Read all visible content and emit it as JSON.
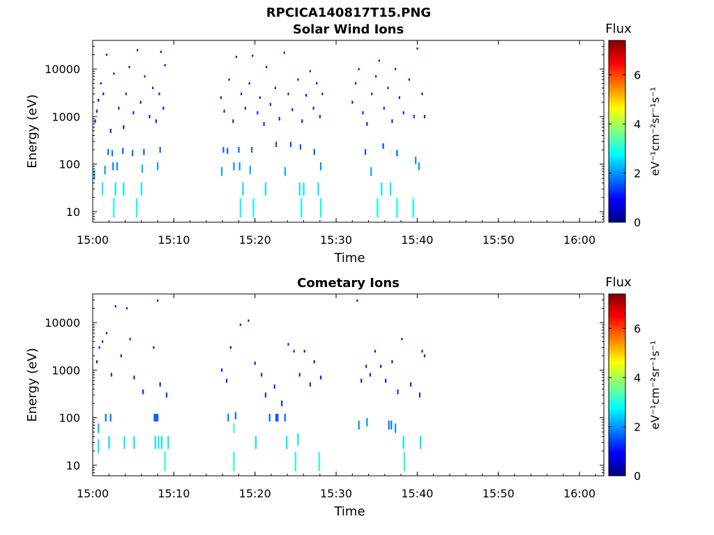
{
  "figure_title": "RPCICA140817T15.PNG",
  "colors": {
    "colormap": [
      "#00007f",
      "#0000ff",
      "#007fff",
      "#00ffff",
      "#7fff7f",
      "#ffff00",
      "#ff7f00",
      "#ff0000",
      "#7f0000"
    ]
  },
  "chart_data": [
    {
      "type": "heatmap",
      "title": "Solar Wind Ions",
      "xlabel": "Time",
      "ylabel": "Energy (eV)",
      "x_scale": "time",
      "y_scale": "log",
      "xlim": [
        "15:00",
        "16:03"
      ],
      "ylim": [
        6,
        40000
      ],
      "x_ticks": [
        "15:00",
        "15:10",
        "15:20",
        "15:30",
        "15:40",
        "15:50",
        "16:00"
      ],
      "y_ticks": [
        "10",
        "100",
        "1000",
        "10000"
      ],
      "colorbar": {
        "label": "Flux",
        "units": "eV⁻¹cm⁻²sr⁻¹s⁻¹",
        "range": [
          0,
          7.4
        ],
        "ticks": [
          "0",
          "2",
          "4",
          "6"
        ]
      },
      "active_intervals": [
        [
          "15:00",
          "15:09"
        ],
        [
          "15:16",
          "15:29"
        ],
        [
          "15:32",
          "15:41"
        ]
      ],
      "points": [
        [
          2.6,
          12,
          2.8
        ],
        [
          5.4,
          12,
          2.8
        ],
        [
          18.2,
          12,
          2.8
        ],
        [
          19.8,
          12,
          2.8
        ],
        [
          25.7,
          12,
          2.8
        ],
        [
          28.1,
          12,
          2.8
        ],
        [
          35.1,
          12,
          2.8
        ],
        [
          37.5,
          12,
          2.8
        ],
        [
          39.5,
          12,
          2.8
        ],
        [
          1.2,
          30,
          2.6
        ],
        [
          2.8,
          30,
          2.6
        ],
        [
          3.8,
          30,
          2.6
        ],
        [
          6.0,
          30,
          2.6
        ],
        [
          18.5,
          30,
          2.6
        ],
        [
          21.3,
          30,
          2.6
        ],
        [
          25.5,
          30,
          2.6
        ],
        [
          26.0,
          30,
          2.6
        ],
        [
          27.8,
          30,
          2.6
        ],
        [
          35.6,
          30,
          2.6
        ],
        [
          36.7,
          30,
          2.6
        ],
        [
          0.2,
          60,
          2.2
        ],
        [
          1.5,
          75,
          2.1
        ],
        [
          2.5,
          90,
          1.9
        ],
        [
          3.0,
          90,
          1.9
        ],
        [
          6.1,
          80,
          2.2
        ],
        [
          8.0,
          90,
          2.1
        ],
        [
          15.9,
          70,
          2.2
        ],
        [
          17.4,
          90,
          2.0
        ],
        [
          18.1,
          90,
          2.0
        ],
        [
          19.4,
          75,
          2.2
        ],
        [
          23.7,
          70,
          2.2
        ],
        [
          28.1,
          90,
          2.0
        ],
        [
          34.3,
          70,
          2.2
        ],
        [
          40.2,
          90,
          2.1
        ],
        [
          39.8,
          120,
          1.9
        ],
        [
          1.9,
          180,
          1.7
        ],
        [
          2.4,
          170,
          1.8
        ],
        [
          3.7,
          190,
          1.6
        ],
        [
          4.9,
          170,
          1.7
        ],
        [
          6.3,
          180,
          1.6
        ],
        [
          8.3,
          200,
          1.6
        ],
        [
          16.1,
          200,
          1.6
        ],
        [
          16.6,
          190,
          1.6
        ],
        [
          18.0,
          200,
          1.7
        ],
        [
          19.6,
          200,
          1.6
        ],
        [
          22.6,
          260,
          1.5
        ],
        [
          24.4,
          260,
          1.5
        ],
        [
          25.6,
          230,
          1.6
        ],
        [
          27.3,
          180,
          1.6
        ],
        [
          33.6,
          180,
          1.6
        ],
        [
          35.8,
          240,
          1.5
        ],
        [
          37.5,
          170,
          1.6
        ],
        [
          0.3,
          800,
          1.2
        ],
        [
          0.5,
          1300,
          1.2
        ],
        [
          0.7,
          2200,
          1.1
        ],
        [
          1.0,
          5000,
          1.1
        ],
        [
          1.3,
          3000,
          1.1
        ],
        [
          1.7,
          20000,
          1.0
        ],
        [
          2.2,
          500,
          1.2
        ],
        [
          2.6,
          8000,
          1.0
        ],
        [
          3.2,
          1500,
          1.2
        ],
        [
          3.8,
          600,
          1.2
        ],
        [
          4.1,
          3000,
          1.1
        ],
        [
          4.5,
          11000,
          1.0
        ],
        [
          5.0,
          1200,
          1.2
        ],
        [
          5.5,
          25000,
          1.0
        ],
        [
          5.9,
          2000,
          1.1
        ],
        [
          6.4,
          7000,
          1.0
        ],
        [
          7.0,
          1000,
          1.2
        ],
        [
          7.4,
          4000,
          1.1
        ],
        [
          7.8,
          800,
          1.2
        ],
        [
          8.2,
          3000,
          1.1
        ],
        [
          8.4,
          23000,
          1.0
        ],
        [
          8.7,
          1500,
          1.1
        ],
        [
          8.9,
          12000,
          1.0
        ],
        [
          15.8,
          2500,
          1.1
        ],
        [
          16.2,
          1300,
          1.2
        ],
        [
          16.8,
          6000,
          1.0
        ],
        [
          17.3,
          800,
          1.2
        ],
        [
          17.7,
          18000,
          1.0
        ],
        [
          18.3,
          3000,
          1.1
        ],
        [
          18.8,
          1500,
          1.2
        ],
        [
          19.3,
          5000,
          1.1
        ],
        [
          19.7,
          19000,
          1.0
        ],
        [
          20.3,
          1200,
          1.2
        ],
        [
          20.6,
          2500,
          1.1
        ],
        [
          21.1,
          700,
          1.2
        ],
        [
          21.4,
          11000,
          1.0
        ],
        [
          21.9,
          1800,
          1.1
        ],
        [
          22.5,
          4000,
          1.1
        ],
        [
          23.0,
          900,
          1.2
        ],
        [
          23.6,
          22000,
          1.0
        ],
        [
          24.1,
          3000,
          1.1
        ],
        [
          24.6,
          1400,
          1.2
        ],
        [
          25.3,
          6000,
          1.0
        ],
        [
          25.8,
          800,
          1.2
        ],
        [
          26.3,
          2800,
          1.1
        ],
        [
          26.8,
          9000,
          1.0
        ],
        [
          27.2,
          1500,
          1.2
        ],
        [
          27.6,
          5000,
          1.1
        ],
        [
          28.0,
          1000,
          1.2
        ],
        [
          28.3,
          3000,
          1.1
        ],
        [
          32.0,
          2000,
          1.1
        ],
        [
          32.4,
          5000,
          1.1
        ],
        [
          32.8,
          10000,
          1.0
        ],
        [
          33.3,
          1200,
          1.2
        ],
        [
          33.8,
          700,
          1.2
        ],
        [
          34.4,
          3000,
          1.1
        ],
        [
          34.9,
          7000,
          1.0
        ],
        [
          35.3,
          15000,
          1.0
        ],
        [
          35.9,
          1500,
          1.2
        ],
        [
          36.4,
          4000,
          1.1
        ],
        [
          36.9,
          800,
          1.2
        ],
        [
          37.3,
          10000,
          1.0
        ],
        [
          37.8,
          2500,
          1.1
        ],
        [
          38.3,
          1200,
          1.2
        ],
        [
          39.0,
          6000,
          1.0
        ],
        [
          39.6,
          1000,
          1.2
        ],
        [
          40.0,
          27000,
          1.0
        ],
        [
          40.6,
          3000,
          1.1
        ],
        [
          40.9,
          1000,
          1.2
        ]
      ]
    },
    {
      "type": "heatmap",
      "title": "Cometary Ions",
      "xlabel": "Time",
      "ylabel": "Energy (eV)",
      "x_scale": "time",
      "y_scale": "log",
      "xlim": [
        "15:00",
        "16:03"
      ],
      "ylim": [
        6,
        40000
      ],
      "x_ticks": [
        "15:00",
        "15:10",
        "15:20",
        "15:30",
        "15:40",
        "15:50",
        "16:00"
      ],
      "y_ticks": [
        "10",
        "100",
        "1000",
        "10000"
      ],
      "colorbar": {
        "label": "Flux",
        "units": "eV⁻¹cm⁻²sr⁻¹s⁻¹",
        "range": [
          0,
          7.4
        ],
        "ticks": [
          "0",
          "2",
          "4",
          "6"
        ]
      },
      "active_intervals": [
        [
          "15:00",
          "15:09"
        ],
        [
          "15:16",
          "15:28"
        ],
        [
          "15:33",
          "15:41"
        ]
      ],
      "points": [
        [
          8.9,
          12,
          3.0
        ],
        [
          17.4,
          12,
          3.0
        ],
        [
          25.0,
          12,
          3.0
        ],
        [
          27.9,
          12,
          3.0
        ],
        [
          38.4,
          12,
          3.0
        ],
        [
          0.7,
          25,
          2.6
        ],
        [
          2.0,
          30,
          2.6
        ],
        [
          3.9,
          30,
          2.6
        ],
        [
          5.1,
          30,
          2.6
        ],
        [
          7.7,
          30,
          2.6
        ],
        [
          8.1,
          30,
          2.6
        ],
        [
          8.5,
          30,
          2.6
        ],
        [
          9.3,
          30,
          2.6
        ],
        [
          17.4,
          60,
          3.2
        ],
        [
          20.1,
          30,
          2.6
        ],
        [
          23.9,
          30,
          2.6
        ],
        [
          25.3,
          35,
          2.6
        ],
        [
          38.3,
          30,
          2.6
        ],
        [
          40.4,
          30,
          2.6
        ],
        [
          0.7,
          60,
          2.3
        ],
        [
          1.6,
          100,
          1.8
        ],
        [
          2.2,
          100,
          1.8
        ],
        [
          7.6,
          100,
          1.5
        ],
        [
          7.8,
          100,
          1.5
        ],
        [
          8.0,
          100,
          1.7
        ],
        [
          16.7,
          100,
          1.8
        ],
        [
          17.6,
          110,
          1.8
        ],
        [
          21.8,
          100,
          1.7
        ],
        [
          22.6,
          100,
          1.5
        ],
        [
          22.8,
          100,
          1.5
        ],
        [
          23.7,
          100,
          1.7
        ],
        [
          32.8,
          70,
          2.0
        ],
        [
          33.8,
          80,
          2.0
        ],
        [
          36.5,
          70,
          1.8
        ],
        [
          36.8,
          70,
          1.8
        ],
        [
          37.3,
          60,
          2.0
        ],
        [
          0.5,
          1500,
          1.1
        ],
        [
          0.8,
          3000,
          1.1
        ],
        [
          1.2,
          4000,
          1.0
        ],
        [
          1.7,
          6000,
          1.0
        ],
        [
          2.3,
          800,
          1.2
        ],
        [
          2.8,
          22000,
          1.0
        ],
        [
          3.5,
          2000,
          1.1
        ],
        [
          4.2,
          20000,
          1.0
        ],
        [
          4.6,
          4500,
          1.1
        ],
        [
          5.1,
          700,
          1.2
        ],
        [
          6.2,
          350,
          1.3
        ],
        [
          7.5,
          3000,
          1.1
        ],
        [
          8.0,
          29000,
          1.0
        ],
        [
          8.3,
          500,
          1.2
        ],
        [
          9.1,
          300,
          1.3
        ],
        [
          15.9,
          1000,
          1.2
        ],
        [
          16.5,
          600,
          1.2
        ],
        [
          17.0,
          3000,
          1.1
        ],
        [
          18.2,
          9000,
          1.0
        ],
        [
          19.2,
          11000,
          1.0
        ],
        [
          20.0,
          1400,
          1.2
        ],
        [
          20.8,
          800,
          1.2
        ],
        [
          21.3,
          300,
          1.3
        ],
        [
          22.4,
          450,
          1.2
        ],
        [
          23.3,
          200,
          1.3
        ],
        [
          24.1,
          3500,
          1.1
        ],
        [
          24.8,
          2500,
          1.1
        ],
        [
          25.5,
          800,
          1.2
        ],
        [
          26.1,
          2500,
          1.1
        ],
        [
          26.8,
          500,
          1.2
        ],
        [
          27.3,
          1500,
          1.1
        ],
        [
          28.1,
          700,
          1.2
        ],
        [
          32.6,
          29000,
          1.0
        ],
        [
          33.1,
          600,
          1.2
        ],
        [
          33.7,
          1200,
          1.2
        ],
        [
          34.2,
          800,
          1.2
        ],
        [
          34.8,
          2500,
          1.1
        ],
        [
          35.5,
          1200,
          1.2
        ],
        [
          36.1,
          600,
          1.2
        ],
        [
          36.9,
          1500,
          1.1
        ],
        [
          37.6,
          350,
          1.3
        ],
        [
          38.1,
          4500,
          1.0
        ],
        [
          39.2,
          500,
          1.2
        ],
        [
          40.3,
          300,
          1.3
        ],
        [
          40.6,
          2500,
          1.1
        ],
        [
          40.9,
          2000,
          1.1
        ]
      ]
    }
  ]
}
